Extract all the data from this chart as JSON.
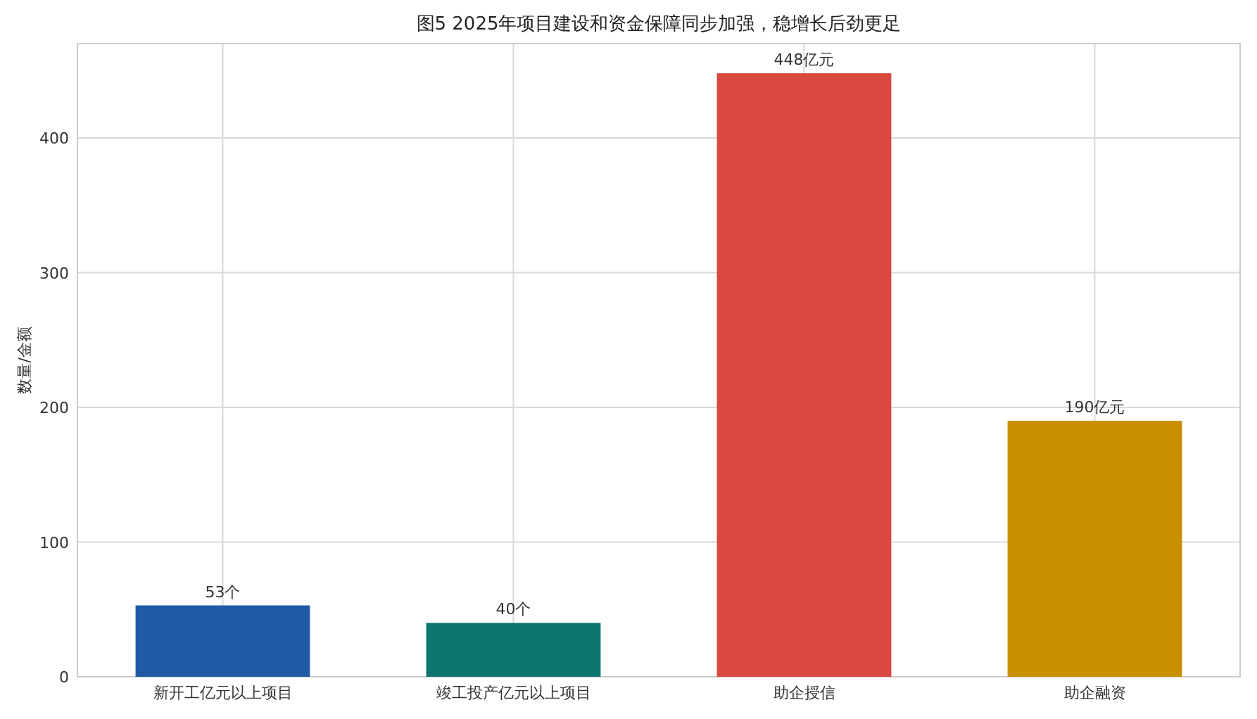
{
  "chart_data": {
    "type": "bar",
    "title": "图5 2025年项目建设和资金保障同步加强，稳增长后劲更足",
    "ylabel": "数量/金额",
    "categories": [
      "新开工亿元以上项目",
      "竣工投产亿元以上项目",
      "助企授信",
      "助企融资"
    ],
    "values": [
      53,
      40,
      448,
      190
    ],
    "colors": [
      "#1f5aa6",
      "#0e766e",
      "#d9493f",
      "#c98f00"
    ],
    "value_labels": [
      "53个",
      "40个",
      "448亿元",
      "190亿元"
    ],
    "ylim": [
      0,
      470
    ],
    "yticks": [
      0,
      100,
      200,
      300,
      400
    ],
    "grid": true
  }
}
